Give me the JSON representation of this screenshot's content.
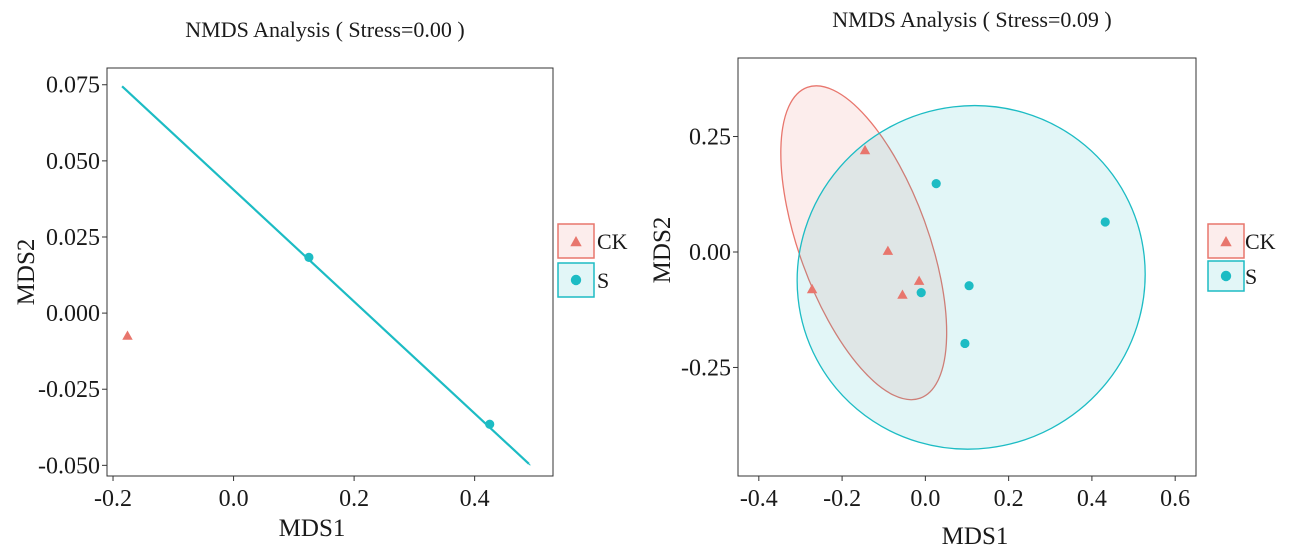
{
  "colors": {
    "CK": "#e8766d",
    "S": "#1dbcc4"
  },
  "chart_data": [
    {
      "type": "scatter",
      "title": "NMDS Analysis ( Stress=0.00 )",
      "xlabel": "MDS1",
      "ylabel": "MDS2",
      "xlim": [
        -0.21,
        0.53
      ],
      "ylim": [
        -0.0535,
        0.0805
      ],
      "xticks": [
        "-0.2",
        "0.0",
        "0.2",
        "0.4"
      ],
      "xtick_values": [
        -0.2,
        0.0,
        0.2,
        0.4
      ],
      "yticks": [
        "0.075",
        "0.050",
        "0.025",
        "0.000",
        "-0.025",
        "-0.050"
      ],
      "ytick_values": [
        0.075,
        0.05,
        0.025,
        0.0,
        -0.025,
        -0.05
      ],
      "grid": false,
      "legend": "right",
      "series": [
        {
          "name": "CK",
          "marker": "triangle",
          "points": [
            {
              "x": -0.176,
              "y": -0.0075
            }
          ]
        },
        {
          "name": "S",
          "marker": "circle",
          "points": [
            {
              "x": 0.125,
              "y": 0.0183
            },
            {
              "x": 0.425,
              "y": -0.0365
            }
          ],
          "ellipse_line": {
            "from": {
              "x": -0.185,
              "y": 0.0745
            },
            "to": {
              "x": 0.49,
              "y": -0.0495
            }
          }
        }
      ]
    },
    {
      "type": "scatter",
      "title": "NMDS Analysis ( Stress=0.09 )",
      "xlabel": "MDS1",
      "ylabel": "MDS2",
      "xlim": [
        -0.45,
        0.65
      ],
      "ylim": [
        -0.485,
        0.42
      ],
      "xticks": [
        "-0.4",
        "-0.2",
        "0.0",
        "0.2",
        "0.4",
        "0.6"
      ],
      "xtick_values": [
        -0.4,
        -0.2,
        0.0,
        0.2,
        0.4,
        0.6
      ],
      "yticks": [
        "0.25",
        "0.00",
        "-0.25"
      ],
      "ytick_values": [
        0.25,
        0.0,
        -0.25
      ],
      "grid": false,
      "legend": "right",
      "series": [
        {
          "name": "CK",
          "marker": "triangle",
          "points": [
            {
              "x": -0.145,
              "y": 0.22
            },
            {
              "x": -0.272,
              "y": -0.081
            },
            {
              "x": -0.09,
              "y": 0.002
            },
            {
              "x": -0.055,
              "y": -0.093
            },
            {
              "x": -0.015,
              "y": -0.063
            }
          ],
          "ellipse": {
            "cx": -0.148,
            "cy": 0.02,
            "rx": 0.155,
            "ry": 0.358,
            "angle": -20
          }
        },
        {
          "name": "S",
          "marker": "circle",
          "points": [
            {
              "x": 0.026,
              "y": 0.148
            },
            {
              "x": 0.432,
              "y": 0.065
            },
            {
              "x": -0.01,
              "y": -0.088
            },
            {
              "x": 0.105,
              "y": -0.073
            },
            {
              "x": 0.095,
              "y": -0.198
            }
          ],
          "ellipse": {
            "cx": 0.11,
            "cy": -0.055,
            "rx": 0.42,
            "ry": 0.37,
            "angle": -28
          }
        }
      ]
    }
  ]
}
